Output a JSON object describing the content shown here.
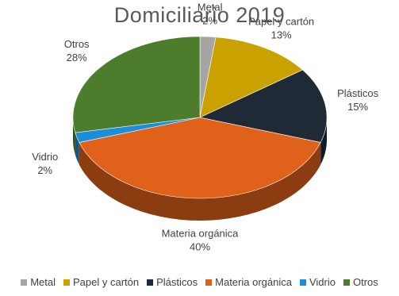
{
  "chart_data": {
    "type": "pie",
    "title": "Domiciliario 2019",
    "categories": [
      "Metal",
      "Papel y cartón",
      "Plásticos",
      "Materia orgánica",
      "Vidrio",
      "Otros"
    ],
    "values": [
      2,
      13,
      15,
      40,
      2,
      28
    ],
    "value_labels": [
      "2%",
      "13%",
      "15%",
      "40%",
      "2%",
      "28%"
    ],
    "colors": [
      "#a5a5a5",
      "#c9a200",
      "#1f2a36",
      "#e0611a",
      "#1a8ed8",
      "#4c7c2c"
    ],
    "style": "3d",
    "legend_position": "bottom",
    "data_labels": "outside"
  }
}
